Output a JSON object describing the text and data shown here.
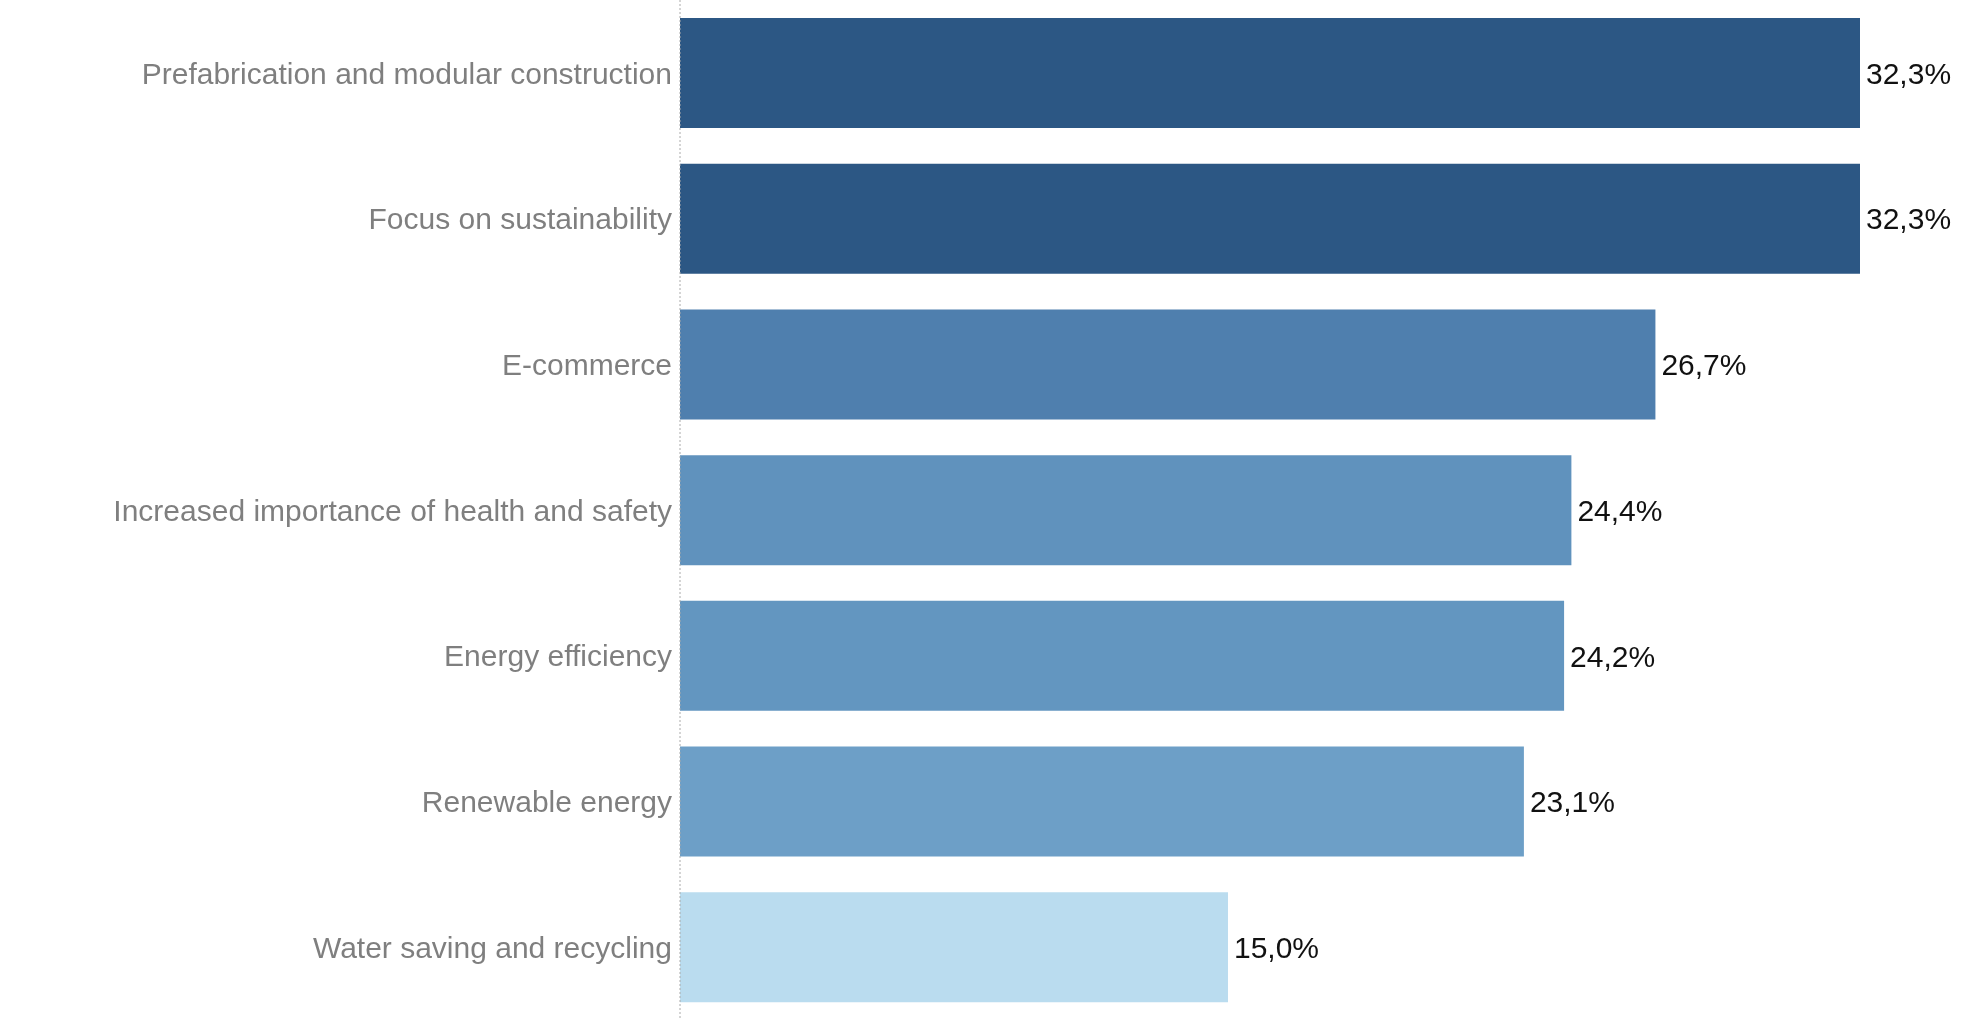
{
  "chart_data": {
    "type": "bar",
    "orientation": "horizontal",
    "categories": [
      "Prefabrication and modular construction",
      "Focus on sustainability",
      "E-commerce",
      "Increased importance of health and safety",
      "Energy efficiency",
      "Renewable energy",
      "Water saving and recycling"
    ],
    "values": [
      32.3,
      32.3,
      26.7,
      24.4,
      24.2,
      23.1,
      15.0
    ],
    "colors": [
      "#2c5784",
      "#2c5784",
      "#4f7fae",
      "#6092bd",
      "#6396c0",
      "#6d9fc7",
      "#badcef"
    ],
    "value_labels": [
      "32,3%",
      "32,3%",
      "26,7%",
      "24,4%",
      "24,2%",
      "23,1%",
      "15,0%"
    ]
  }
}
